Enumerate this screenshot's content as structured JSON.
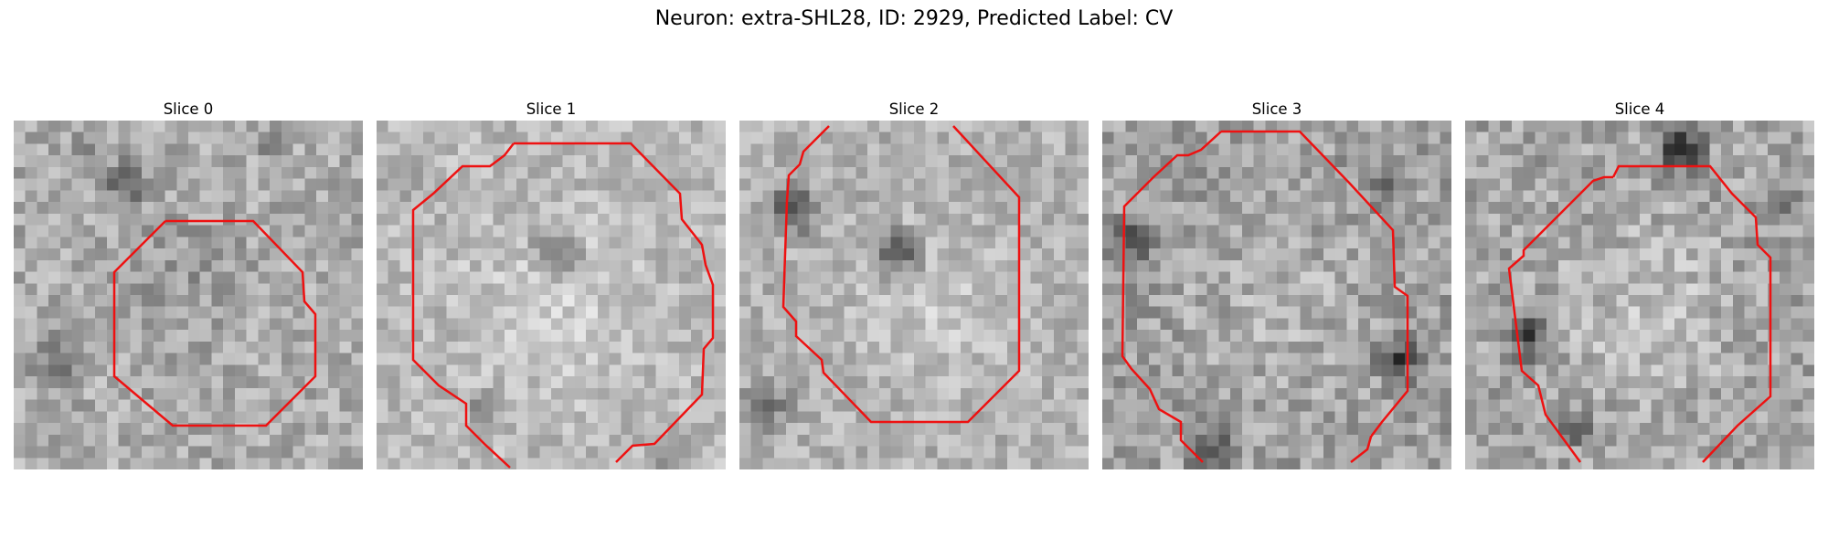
{
  "figure": {
    "title": "Neuron: extra-SHL28, ID: 2929, Predicted Label: CV"
  },
  "slices": [
    {
      "label": "Slice 0"
    },
    {
      "label": "Slice 1"
    },
    {
      "label": "Slice 2"
    },
    {
      "label": "Slice 3"
    },
    {
      "label": "Slice 4"
    }
  ],
  "colors": {
    "contour": "#ee1111",
    "image_colormap": "grayscale"
  }
}
